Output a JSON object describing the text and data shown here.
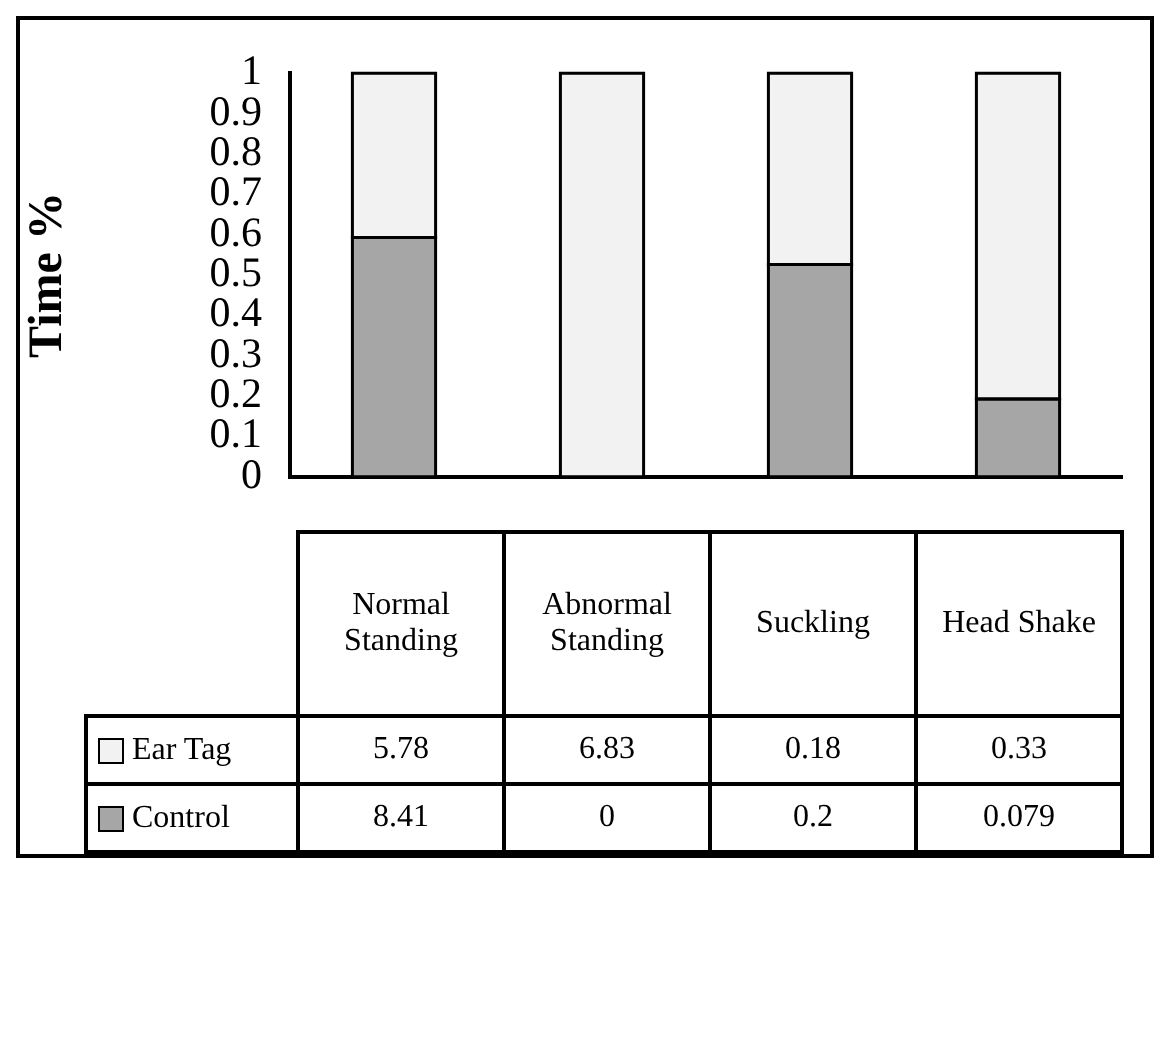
{
  "chart_data": [
    {
      "type": "bar",
      "stacked": true,
      "ylabel": "Time %",
      "categories": [
        null,
        null,
        null,
        null
      ],
      "series": [
        {
          "color": "#a6a6a6",
          "values": [
            0.593,
            0,
            0.526,
            0.193
          ]
        },
        {
          "color": "#f2f2f2",
          "values": [
            0.407,
            1,
            0.474,
            0.807
          ]
        }
      ],
      "ylim": [
        0,
        1
      ],
      "yticks": [
        0,
        0.1,
        0.2,
        0.3,
        0.4,
        0.5,
        0.6,
        0.7,
        0.8,
        0.9,
        1
      ],
      "grid": false
    },
    {
      "type": "other",
      "data_labels": true,
      "legend": "left",
      "categories": [
        "Normal Standing",
        "Abnormal Standing",
        "Suckling",
        "Head Shake"
      ],
      "series": [
        {
          "name": "Ear Tag",
          "color": "#f2f2f2",
          "values": [
            5.78,
            6.83,
            0.18,
            0.33
          ]
        },
        {
          "name": "Control",
          "color": "#a6a6a6",
          "values": [
            8.41,
            0,
            0.2,
            0.079
          ]
        }
      ]
    }
  ]
}
